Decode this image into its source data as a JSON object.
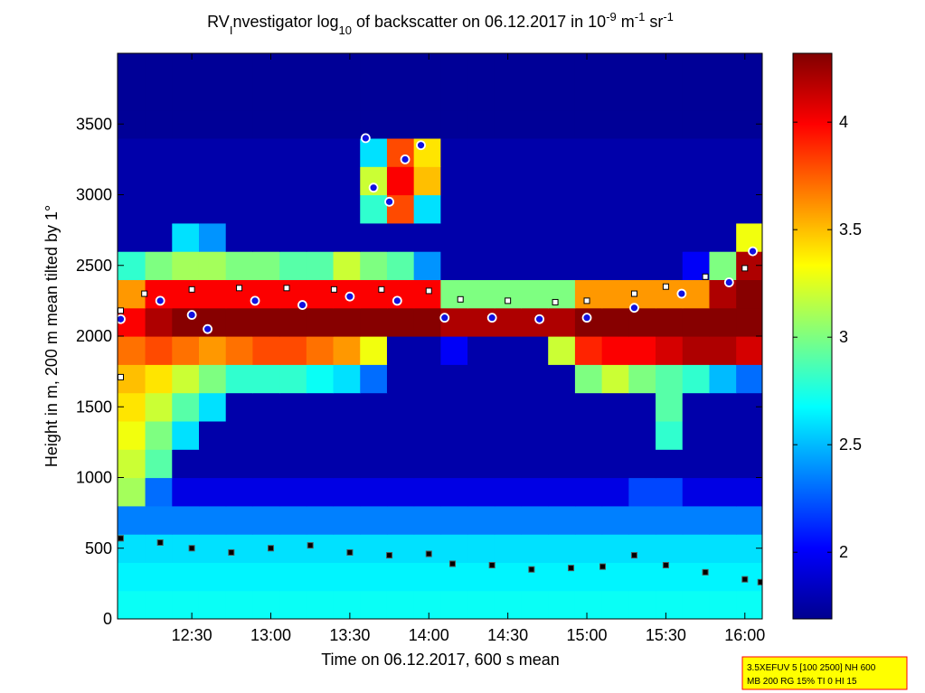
{
  "chart_data": {
    "type": "heatmap",
    "title_parts": [
      {
        "text": "RV"
      },
      {
        "text": "I",
        "shift": "sub"
      },
      {
        "text": "nvestigator log"
      },
      {
        "text": "10",
        "shift": "sub"
      },
      {
        "text": " of backscatter on 06.12.2017 in 10"
      },
      {
        "text": "-9",
        "shift": "super"
      },
      {
        "text": " m"
      },
      {
        "text": "-1",
        "shift": "super"
      },
      {
        "text": " sr"
      },
      {
        "text": "-1",
        "shift": "super"
      }
    ],
    "xlabel": "Time on 06.12.2017, 600 s mean",
    "ylabel": "Height in m, 200 m mean tilted by 1°",
    "xlim": [
      12.03,
      16.11
    ],
    "ylim": [
      0,
      4000
    ],
    "xticks": [
      {
        "value": 12.5,
        "label": "12:30"
      },
      {
        "value": 13,
        "label": "13:00"
      },
      {
        "value": 13.5,
        "label": "13:30"
      },
      {
        "value": 14,
        "label": "14:00"
      },
      {
        "value": 14.5,
        "label": "14:30"
      },
      {
        "value": 15,
        "label": "15:00"
      },
      {
        "value": 15.5,
        "label": "15:30"
      },
      {
        "value": 16,
        "label": "16:00"
      }
    ],
    "yticks": [
      0,
      500,
      1000,
      1500,
      2000,
      2500,
      3000,
      3500
    ],
    "clim": [
      1.69,
      4.32
    ],
    "cticks": [
      2,
      2.5,
      3,
      3.5,
      4
    ],
    "colormap": "jet",
    "x": [
      12.12,
      12.29,
      12.46,
      12.63,
      12.8,
      12.97,
      13.14,
      13.31,
      13.48,
      13.65,
      13.82,
      13.99,
      14.16,
      14.33,
      14.5,
      14.67,
      14.84,
      15.01,
      15.18,
      15.35,
      15.52,
      15.69,
      15.86,
      16.03
    ],
    "y": [
      100,
      300,
      500,
      700,
      900,
      1100,
      1300,
      1500,
      1700,
      1900,
      2100,
      2300,
      2500,
      2700,
      2900,
      3100,
      3300,
      3500,
      3700,
      3900
    ],
    "z": [
      [
        2.7,
        2.7,
        2.7,
        2.7,
        2.7,
        2.7,
        2.7,
        2.7,
        2.7,
        2.7,
        2.7,
        2.7,
        2.7,
        2.7,
        2.7,
        2.7,
        2.7,
        2.7,
        2.7,
        2.7,
        2.7,
        2.7,
        2.7,
        2.7
      ],
      [
        2.65,
        2.65,
        2.65,
        2.65,
        2.65,
        2.65,
        2.65,
        2.65,
        2.65,
        2.65,
        2.65,
        2.65,
        2.65,
        2.65,
        2.65,
        2.65,
        2.65,
        2.65,
        2.65,
        2.65,
        2.65,
        2.65,
        2.65,
        2.65
      ],
      [
        2.6,
        2.6,
        2.6,
        2.6,
        2.6,
        2.6,
        2.6,
        2.6,
        2.6,
        2.6,
        2.6,
        2.6,
        2.6,
        2.6,
        2.6,
        2.6,
        2.6,
        2.6,
        2.6,
        2.6,
        2.6,
        2.6,
        2.6,
        2.6
      ],
      [
        2.35,
        2.35,
        2.35,
        2.35,
        2.35,
        2.35,
        2.35,
        2.35,
        2.35,
        2.35,
        2.35,
        2.35,
        2.35,
        2.35,
        2.35,
        2.35,
        2.35,
        2.35,
        2.35,
        2.35,
        2.35,
        2.35,
        2.35,
        2.35
      ],
      [
        3.1,
        2.3,
        1.95,
        1.95,
        1.95,
        1.95,
        1.95,
        1.95,
        1.95,
        1.95,
        1.95,
        1.95,
        1.95,
        1.95,
        1.95,
        1.95,
        1.95,
        1.95,
        1.95,
        2.2,
        2.2,
        1.95,
        1.95,
        1.95
      ],
      [
        3.2,
        2.9,
        1.8,
        1.8,
        1.8,
        1.8,
        1.8,
        1.8,
        1.8,
        1.8,
        1.8,
        1.8,
        1.8,
        1.8,
        1.8,
        1.8,
        1.8,
        1.8,
        1.8,
        1.8,
        1.8,
        1.8,
        1.8,
        1.8
      ],
      [
        3.3,
        3.0,
        2.6,
        1.8,
        1.8,
        1.8,
        1.8,
        1.8,
        1.8,
        1.8,
        1.8,
        1.8,
        1.8,
        1.8,
        1.8,
        1.8,
        1.8,
        1.8,
        1.8,
        1.8,
        2.8,
        1.8,
        1.8,
        1.8
      ],
      [
        3.4,
        3.2,
        2.9,
        2.6,
        1.8,
        1.8,
        1.8,
        1.8,
        1.8,
        1.8,
        1.8,
        1.8,
        1.8,
        1.8,
        1.8,
        1.8,
        1.8,
        1.8,
        1.8,
        1.8,
        2.9,
        1.8,
        1.8,
        1.8
      ],
      [
        3.5,
        3.4,
        3.2,
        3.0,
        2.8,
        2.8,
        2.8,
        2.7,
        2.6,
        2.3,
        1.8,
        1.8,
        1.8,
        1.8,
        1.8,
        1.8,
        1.8,
        3.0,
        3.2,
        3.0,
        2.9,
        2.8,
        2.5,
        2.3
      ],
      [
        3.7,
        3.8,
        3.7,
        3.6,
        3.7,
        3.8,
        3.8,
        3.7,
        3.6,
        3.3,
        1.8,
        1.8,
        2.0,
        1.8,
        1.8,
        1.8,
        3.2,
        3.9,
        4.0,
        4.0,
        4.1,
        4.2,
        4.2,
        4.1
      ],
      [
        4.0,
        4.2,
        4.3,
        4.3,
        4.3,
        4.3,
        4.3,
        4.3,
        4.3,
        4.3,
        4.3,
        4.3,
        4.2,
        4.2,
        4.2,
        4.2,
        4.2,
        4.3,
        4.3,
        4.3,
        4.3,
        4.3,
        4.3,
        4.3
      ],
      [
        3.6,
        4.0,
        4.0,
        4.0,
        4.0,
        4.0,
        4.0,
        4.0,
        4.0,
        4.0,
        4.0,
        4.0,
        3.0,
        3.0,
        3.0,
        3.0,
        3.0,
        3.6,
        3.6,
        3.6,
        3.6,
        3.6,
        4.2,
        4.3
      ],
      [
        2.8,
        3.0,
        3.1,
        3.1,
        3.0,
        3.0,
        2.9,
        2.9,
        3.2,
        3.0,
        2.9,
        2.4,
        1.8,
        1.8,
        1.8,
        1.8,
        1.8,
        1.8,
        1.8,
        1.8,
        1.8,
        2.0,
        3.0,
        4.2
      ],
      [
        1.8,
        1.8,
        2.6,
        2.4,
        1.8,
        1.8,
        1.8,
        1.8,
        1.8,
        1.8,
        1.8,
        1.8,
        1.8,
        1.8,
        1.8,
        1.8,
        1.8,
        1.8,
        1.8,
        1.8,
        1.8,
        1.8,
        1.8,
        3.3
      ],
      [
        1.8,
        1.8,
        1.8,
        1.8,
        1.8,
        1.8,
        1.8,
        1.8,
        1.8,
        2.8,
        3.8,
        2.6,
        1.8,
        1.8,
        1.8,
        1.8,
        1.8,
        1.8,
        1.8,
        1.8,
        1.8,
        1.8,
        1.8,
        1.8
      ],
      [
        1.8,
        1.8,
        1.8,
        1.8,
        1.8,
        1.8,
        1.8,
        1.8,
        1.8,
        3.2,
        4.0,
        3.5,
        1.8,
        1.8,
        1.8,
        1.8,
        1.8,
        1.8,
        1.8,
        1.8,
        1.8,
        1.8,
        1.8,
        1.8
      ],
      [
        1.8,
        1.8,
        1.8,
        1.8,
        1.8,
        1.8,
        1.8,
        1.8,
        1.8,
        2.6,
        3.8,
        3.4,
        1.8,
        1.8,
        1.8,
        1.8,
        1.8,
        1.8,
        1.8,
        1.8,
        1.8,
        1.8,
        1.8,
        1.8
      ],
      [
        1.75,
        1.75,
        1.75,
        1.75,
        1.75,
        1.75,
        1.75,
        1.75,
        1.75,
        1.75,
        1.75,
        1.75,
        1.75,
        1.75,
        1.75,
        1.75,
        1.75,
        1.75,
        1.75,
        1.75,
        1.75,
        1.75,
        1.75,
        1.75
      ],
      [
        1.75,
        1.75,
        1.75,
        1.75,
        1.75,
        1.75,
        1.75,
        1.75,
        1.75,
        1.75,
        1.75,
        1.75,
        1.75,
        1.75,
        1.75,
        1.75,
        1.75,
        1.75,
        1.75,
        1.75,
        1.75,
        1.75,
        1.75,
        1.75
      ],
      [
        1.75,
        1.75,
        1.75,
        1.75,
        1.75,
        1.75,
        1.75,
        1.75,
        1.75,
        1.75,
        1.75,
        1.75,
        1.75,
        1.75,
        1.75,
        1.75,
        1.75,
        1.75,
        1.75,
        1.75,
        1.75,
        1.75,
        1.75,
        1.75
      ]
    ],
    "series": [
      {
        "marker": "square",
        "color": "#000000",
        "edge": "#555555",
        "x": [
          12.05,
          12.3,
          12.5,
          12.75,
          13.0,
          13.25,
          13.5,
          13.75,
          14.0,
          14.15,
          14.4,
          14.65,
          14.9,
          15.1,
          15.3,
          15.5,
          15.75,
          16.0,
          16.1
        ],
        "values": [
          570,
          540,
          500,
          470,
          500,
          520,
          470,
          450,
          460,
          390,
          380,
          350,
          360,
          370,
          450,
          380,
          330,
          280,
          260
        ]
      },
      {
        "marker": "square",
        "color": "#ffffff",
        "edge": "#000000",
        "x": [
          12.05,
          12.05,
          12.2,
          12.5,
          12.8,
          13.1,
          13.4,
          13.7,
          14.0,
          14.2,
          14.5,
          14.8,
          15.0,
          15.3,
          15.5,
          15.75,
          16.0
        ],
        "values": [
          1710,
          2180,
          2300,
          2330,
          2340,
          2340,
          2330,
          2330,
          2320,
          2260,
          2250,
          2240,
          2250,
          2300,
          2350,
          2420,
          2480
        ]
      },
      {
        "marker": "circle",
        "color": "#1010e0",
        "edge": "#ffffff",
        "x": [
          12.05,
          12.3,
          12.5,
          12.6,
          12.9,
          13.2,
          13.5,
          13.8,
          14.1,
          14.4,
          14.7,
          15.0,
          15.3,
          15.6,
          15.9,
          16.05,
          13.6,
          13.65,
          13.75,
          13.85,
          13.95
        ],
        "values": [
          2120,
          2250,
          2150,
          2050,
          2250,
          2220,
          2280,
          2250,
          2130,
          2130,
          2120,
          2130,
          2200,
          2300,
          2380,
          2600,
          3400,
          3050,
          2950,
          3250,
          3350
        ]
      }
    ],
    "annotations": [
      "3.5XEFUV 5 [100 2500] NH 600",
      "MB 200 RG 15% TI 0 HI 15"
    ]
  }
}
